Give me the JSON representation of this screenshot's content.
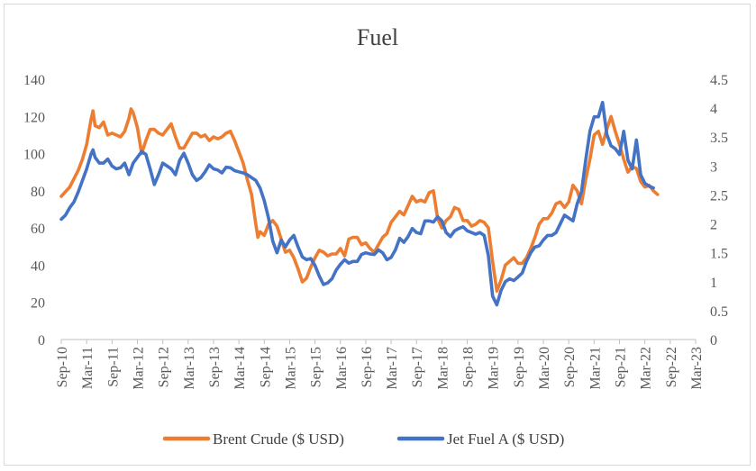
{
  "chart_data": {
    "type": "line",
    "title": "Fuel",
    "xlabel": "",
    "ylabel_left": "",
    "ylabel_right": "",
    "grid": false,
    "legend_position": "bottom",
    "y_left": {
      "min": 0,
      "max": 140,
      "ticks": [
        "0",
        "20",
        "40",
        "60",
        "80",
        "100",
        "120",
        "140"
      ]
    },
    "y_right": {
      "min": 0,
      "max": 4.5,
      "ticks": [
        "0",
        "0.5",
        "1",
        "1.5",
        "2",
        "2.5",
        "3",
        "3.5",
        "4",
        "4.5"
      ]
    },
    "x_tick_labels": [
      "Sep-10",
      "Mar-11",
      "Sep-11",
      "Mar-12",
      "Sep-12",
      "Mar-13",
      "Sep-13",
      "Mar-14",
      "Sep-14",
      "Mar-15",
      "Sep-15",
      "Mar-16",
      "Sep-16",
      "Mar-17",
      "Sep-17",
      "Mar-18",
      "Sep-18",
      "Mar-19",
      "Sep-19",
      "Mar-20",
      "Sep-20",
      "Mar-21",
      "Sep-21",
      "Mar-22",
      "Sep-22",
      "Mar-23"
    ],
    "x_range_months": [
      0,
      150
    ],
    "series": [
      {
        "name": "Brent Crude ($ USD)",
        "axis": "left",
        "color": "#ED7D31",
        "points": [
          [
            0,
            77
          ],
          [
            2,
            82
          ],
          [
            4,
            91
          ],
          [
            5,
            97
          ],
          [
            6,
            105
          ],
          [
            7,
            118
          ],
          [
            7.5,
            123
          ],
          [
            8,
            115
          ],
          [
            9,
            114
          ],
          [
            10,
            117
          ],
          [
            11,
            110
          ],
          [
            12,
            111
          ],
          [
            13,
            110
          ],
          [
            14,
            109
          ],
          [
            15,
            112
          ],
          [
            16,
            119
          ],
          [
            16.5,
            124
          ],
          [
            17,
            122
          ],
          [
            18,
            114
          ],
          [
            19,
            100
          ],
          [
            20,
            107
          ],
          [
            21,
            113
          ],
          [
            22,
            113
          ],
          [
            23,
            111
          ],
          [
            24,
            110
          ],
          [
            25,
            113
          ],
          [
            26,
            116
          ],
          [
            27,
            109
          ],
          [
            28,
            103
          ],
          [
            29,
            103
          ],
          [
            30,
            107
          ],
          [
            31,
            111
          ],
          [
            32,
            111
          ],
          [
            33,
            109
          ],
          [
            34,
            110
          ],
          [
            35,
            107
          ],
          [
            36,
            109
          ],
          [
            37,
            108
          ],
          [
            38,
            109
          ],
          [
            39,
            111
          ],
          [
            40,
            112
          ],
          [
            41,
            107
          ],
          [
            42,
            101
          ],
          [
            43,
            95
          ],
          [
            44,
            86
          ],
          [
            45,
            78
          ],
          [
            46,
            62
          ],
          [
            46.5,
            55
          ],
          [
            47,
            58
          ],
          [
            48,
            56
          ],
          [
            49,
            62
          ],
          [
            50,
            64
          ],
          [
            51,
            61
          ],
          [
            52,
            54
          ],
          [
            53,
            47
          ],
          [
            54,
            48
          ],
          [
            55,
            44
          ],
          [
            56,
            38
          ],
          [
            57,
            31
          ],
          [
            58,
            33
          ],
          [
            59,
            39
          ],
          [
            60,
            44
          ],
          [
            61,
            48
          ],
          [
            62,
            47
          ],
          [
            63,
            45
          ],
          [
            64,
            46
          ],
          [
            65,
            46
          ],
          [
            66,
            49
          ],
          [
            67,
            45
          ],
          [
            68,
            54
          ],
          [
            69,
            55
          ],
          [
            70,
            55
          ],
          [
            71,
            51
          ],
          [
            72,
            52
          ],
          [
            73,
            49
          ],
          [
            74,
            47
          ],
          [
            75,
            51
          ],
          [
            76,
            55
          ],
          [
            77,
            57
          ],
          [
            78,
            63
          ],
          [
            79,
            66
          ],
          [
            80,
            69
          ],
          [
            81,
            67
          ],
          [
            82,
            72
          ],
          [
            83,
            77
          ],
          [
            84,
            74
          ],
          [
            85,
            75
          ],
          [
            86,
            74
          ],
          [
            87,
            79
          ],
          [
            88,
            80
          ],
          [
            89,
            65
          ],
          [
            90,
            60
          ],
          [
            91,
            64
          ],
          [
            92,
            66
          ],
          [
            93,
            71
          ],
          [
            94,
            70
          ],
          [
            95,
            64
          ],
          [
            96,
            64
          ],
          [
            97,
            61
          ],
          [
            98,
            62
          ],
          [
            99,
            64
          ],
          [
            100,
            63
          ],
          [
            101,
            60
          ],
          [
            102,
            42
          ],
          [
            103,
            26
          ],
          [
            104,
            32
          ],
          [
            105,
            40
          ],
          [
            106,
            42
          ],
          [
            107,
            44
          ],
          [
            108,
            41
          ],
          [
            109,
            41
          ],
          [
            110,
            44
          ],
          [
            111,
            49
          ],
          [
            112,
            55
          ],
          [
            113,
            62
          ],
          [
            114,
            65
          ],
          [
            115,
            65
          ],
          [
            116,
            68
          ],
          [
            117,
            73
          ],
          [
            118,
            74
          ],
          [
            119,
            71
          ],
          [
            120,
            74
          ],
          [
            121,
            83
          ],
          [
            122,
            80
          ],
          [
            123,
            73
          ],
          [
            124,
            86
          ],
          [
            125,
            97
          ],
          [
            126,
            110
          ],
          [
            127,
            112
          ],
          [
            128,
            105
          ],
          [
            129,
            113
          ],
          [
            130,
            120
          ],
          [
            131,
            112
          ],
          [
            132,
            105
          ],
          [
            133,
            97
          ],
          [
            134,
            90
          ],
          [
            135,
            93
          ],
          [
            136,
            92
          ],
          [
            137,
            85
          ],
          [
            138,
            82
          ],
          [
            139,
            83
          ],
          [
            140,
            80
          ],
          [
            141,
            78
          ]
        ]
      },
      {
        "name": "Jet Fuel A ($ USD)",
        "axis": "right",
        "color": "#4472C4",
        "points": [
          [
            0,
            2.08
          ],
          [
            1,
            2.15
          ],
          [
            2,
            2.28
          ],
          [
            3,
            2.38
          ],
          [
            4,
            2.55
          ],
          [
            5,
            2.75
          ],
          [
            6,
            2.95
          ],
          [
            7,
            3.2
          ],
          [
            7.5,
            3.28
          ],
          [
            8,
            3.15
          ],
          [
            9,
            3.05
          ],
          [
            10,
            3.05
          ],
          [
            11,
            3.12
          ],
          [
            12,
            3.0
          ],
          [
            13,
            2.95
          ],
          [
            14,
            2.97
          ],
          [
            15,
            3.05
          ],
          [
            16,
            2.85
          ],
          [
            17,
            3.05
          ],
          [
            18,
            3.15
          ],
          [
            19,
            3.25
          ],
          [
            20,
            3.2
          ],
          [
            21,
            2.95
          ],
          [
            22,
            2.68
          ],
          [
            23,
            2.85
          ],
          [
            24,
            3.05
          ],
          [
            25,
            3.0
          ],
          [
            26,
            2.95
          ],
          [
            27,
            2.85
          ],
          [
            28,
            3.1
          ],
          [
            29,
            3.22
          ],
          [
            30,
            3.05
          ],
          [
            31,
            2.85
          ],
          [
            32,
            2.75
          ],
          [
            33,
            2.8
          ],
          [
            34,
            2.9
          ],
          [
            35,
            3.02
          ],
          [
            36,
            2.95
          ],
          [
            37,
            2.93
          ],
          [
            38,
            2.88
          ],
          [
            39,
            2.98
          ],
          [
            40,
            2.97
          ],
          [
            41,
            2.92
          ],
          [
            42,
            2.9
          ],
          [
            43,
            2.88
          ],
          [
            44,
            2.85
          ],
          [
            45,
            2.8
          ],
          [
            46,
            2.75
          ],
          [
            47,
            2.62
          ],
          [
            48,
            2.4
          ],
          [
            49,
            2.1
          ],
          [
            50,
            1.7
          ],
          [
            51,
            1.5
          ],
          [
            52,
            1.72
          ],
          [
            53,
            1.6
          ],
          [
            54,
            1.72
          ],
          [
            55,
            1.8
          ],
          [
            56,
            1.6
          ],
          [
            57,
            1.43
          ],
          [
            58,
            1.38
          ],
          [
            59,
            1.4
          ],
          [
            60,
            1.28
          ],
          [
            61,
            1.1
          ],
          [
            62,
            0.95
          ],
          [
            63,
            0.98
          ],
          [
            64,
            1.05
          ],
          [
            65,
            1.2
          ],
          [
            66,
            1.3
          ],
          [
            67,
            1.38
          ],
          [
            68,
            1.32
          ],
          [
            69,
            1.35
          ],
          [
            70,
            1.35
          ],
          [
            71,
            1.47
          ],
          [
            72,
            1.5
          ],
          [
            73,
            1.48
          ],
          [
            74,
            1.47
          ],
          [
            75,
            1.55
          ],
          [
            76,
            1.5
          ],
          [
            77,
            1.38
          ],
          [
            78,
            1.42
          ],
          [
            79,
            1.55
          ],
          [
            80,
            1.75
          ],
          [
            81,
            1.68
          ],
          [
            82,
            1.78
          ],
          [
            83,
            1.92
          ],
          [
            84,
            1.85
          ],
          [
            85,
            1.83
          ],
          [
            86,
            2.05
          ],
          [
            87,
            2.05
          ],
          [
            88,
            2.03
          ],
          [
            89,
            2.12
          ],
          [
            90,
            2.05
          ],
          [
            91,
            1.85
          ],
          [
            92,
            1.78
          ],
          [
            93,
            1.88
          ],
          [
            94,
            1.92
          ],
          [
            95,
            1.95
          ],
          [
            96,
            1.88
          ],
          [
            97,
            1.85
          ],
          [
            98,
            1.82
          ],
          [
            99,
            1.85
          ],
          [
            100,
            1.8
          ],
          [
            101,
            1.45
          ],
          [
            102,
            0.75
          ],
          [
            103,
            0.6
          ],
          [
            104,
            0.85
          ],
          [
            105,
            1.0
          ],
          [
            106,
            1.05
          ],
          [
            107,
            1.02
          ],
          [
            108,
            1.08
          ],
          [
            109,
            1.15
          ],
          [
            110,
            1.35
          ],
          [
            111,
            1.5
          ],
          [
            112,
            1.6
          ],
          [
            113,
            1.62
          ],
          [
            114,
            1.72
          ],
          [
            115,
            1.8
          ],
          [
            116,
            1.8
          ],
          [
            117,
            1.85
          ],
          [
            118,
            2.0
          ],
          [
            119,
            2.15
          ],
          [
            120,
            2.1
          ],
          [
            121,
            2.05
          ],
          [
            122,
            2.35
          ],
          [
            123,
            2.55
          ],
          [
            124,
            3.1
          ],
          [
            125,
            3.6
          ],
          [
            126,
            3.85
          ],
          [
            127,
            3.85
          ],
          [
            128,
            4.1
          ],
          [
            129,
            3.55
          ],
          [
            130,
            3.35
          ],
          [
            131,
            3.3
          ],
          [
            132,
            3.2
          ],
          [
            133,
            3.6
          ],
          [
            134,
            3.1
          ],
          [
            135,
            2.95
          ],
          [
            136,
            3.45
          ],
          [
            137,
            2.85
          ],
          [
            138,
            2.7
          ],
          [
            139,
            2.65
          ],
          [
            140,
            2.62
          ]
        ]
      }
    ]
  }
}
